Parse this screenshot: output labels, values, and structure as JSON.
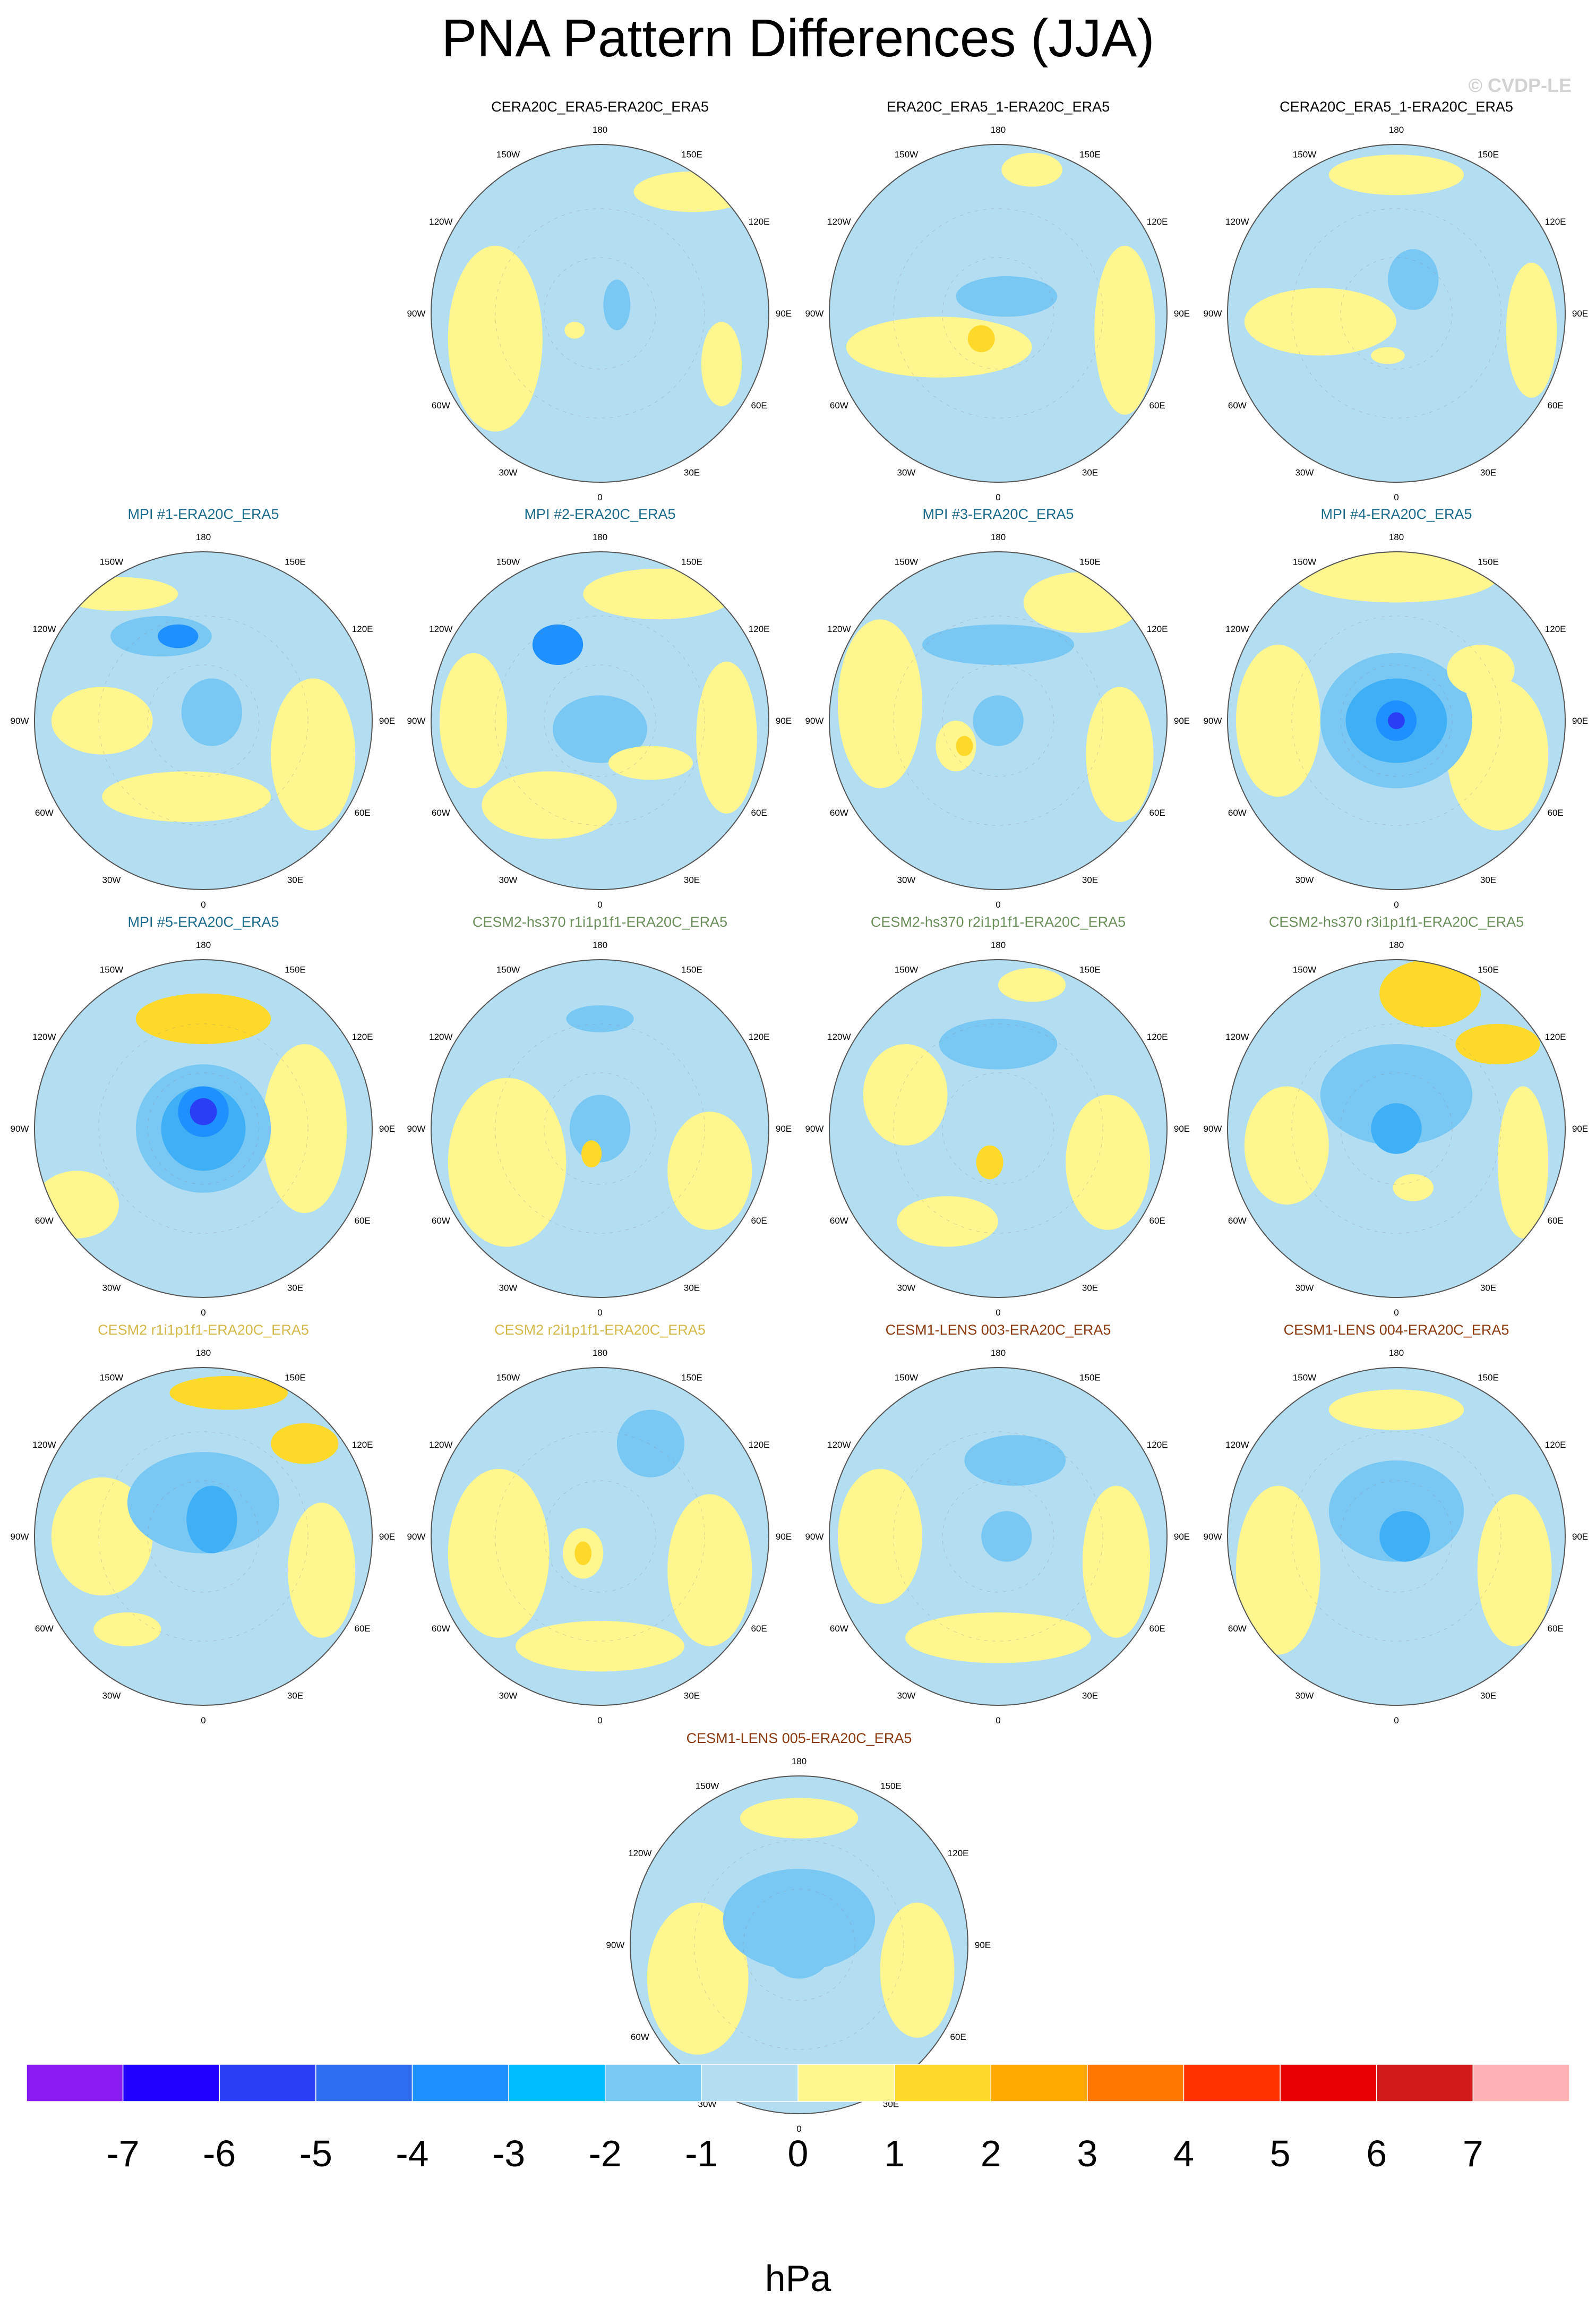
{
  "title": "PNA Pattern Differences (JJA)",
  "watermark": "© CVDP-LE",
  "colorbar": {
    "units": "hPa",
    "tick_labels": [
      "-7",
      "-6",
      "-5",
      "-4",
      "-3",
      "-2",
      "-1",
      "0",
      "1",
      "2",
      "3",
      "4",
      "5",
      "6",
      "7"
    ],
    "colors": [
      "#8a1cf2",
      "#2200ff",
      "#2a3ff5",
      "#2e6cf0",
      "#1e90ff",
      "#00bfff",
      "#79c8f4",
      "#b3ddf1",
      "#fff68f",
      "#ffd929",
      "#ffaa00",
      "#ff7700",
      "#ff3300",
      "#e80000",
      "#d11a1a",
      "#ffb3b3"
    ]
  },
  "lon_labels": [
    "180",
    "150E",
    "120E",
    "90E",
    "60E",
    "30E",
    "0",
    "30W",
    "60W",
    "90W",
    "120W",
    "150W"
  ],
  "chart_data": {
    "type": "heatmap",
    "projection": "polar stereographic, north pole",
    "variable": "PNA pattern difference",
    "season": "JJA",
    "units": "hPa",
    "levels": [
      -7,
      -6,
      -5,
      -4,
      -3,
      -2,
      -1,
      0,
      1,
      2,
      3,
      4,
      5,
      6,
      7
    ],
    "panels": [
      {
        "title": "CERA20C_ERA5-ERA20C_ERA5",
        "title_color": "#000000"
      },
      {
        "title": "ERA20C_ERA5_1-ERA20C_ERA5",
        "title_color": "#000000"
      },
      {
        "title": "CERA20C_ERA5_1-ERA20C_ERA5",
        "title_color": "#000000"
      },
      {
        "title": "MPI #1-ERA20C_ERA5",
        "title_color": "#1a6a8c"
      },
      {
        "title": "MPI #2-ERA20C_ERA5",
        "title_color": "#1a6a8c"
      },
      {
        "title": "MPI #3-ERA20C_ERA5",
        "title_color": "#1a6a8c"
      },
      {
        "title": "MPI #4-ERA20C_ERA5",
        "title_color": "#1a6a8c"
      },
      {
        "title": "MPI #5-ERA20C_ERA5",
        "title_color": "#1a6a8c"
      },
      {
        "title": "CESM2-hs370 r1i1p1f1-ERA20C_ERA5",
        "title_color": "#6b8e5a"
      },
      {
        "title": "CESM2-hs370 r2i1p1f1-ERA20C_ERA5",
        "title_color": "#6b8e5a"
      },
      {
        "title": "CESM2-hs370 r3i1p1f1-ERA20C_ERA5",
        "title_color": "#6b8e5a"
      },
      {
        "title": "CESM2 r1i1p1f1-ERA20C_ERA5",
        "title_color": "#d4b84a"
      },
      {
        "title": "CESM2 r2i1p1f1-ERA20C_ERA5",
        "title_color": "#d4b84a"
      },
      {
        "title": "CESM1-LENS 003-ERA20C_ERA5",
        "title_color": "#8b3a0f"
      },
      {
        "title": "CESM1-LENS 004-ERA20C_ERA5",
        "title_color": "#8b3a0f"
      },
      {
        "title": "CESM1-LENS 005-ERA20C_ERA5",
        "title_color": "#8b3a0f"
      }
    ]
  }
}
